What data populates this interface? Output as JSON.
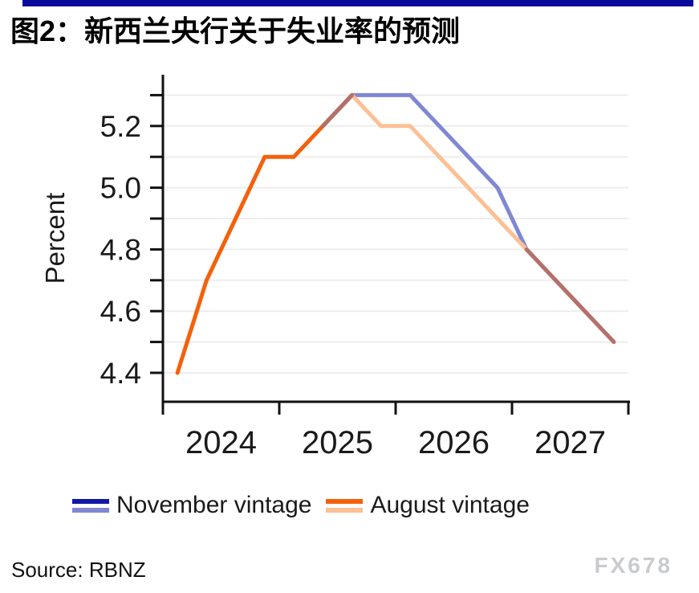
{
  "header": {
    "title": "图2：新西兰央行关于失业率的预测",
    "rule_color": "#0A0A9B"
  },
  "chart_data": {
    "type": "line",
    "frequency": "quarterly",
    "ylabel": "Percent",
    "x_year_labels": [
      "2024",
      "2025",
      "2026",
      "2027"
    ],
    "y_tick_labels": [
      "4.4",
      "4.6",
      "4.8",
      "5.0",
      "5.2"
    ],
    "grid_lines_at": [
      4.4,
      4.5,
      4.6,
      4.7,
      4.8,
      4.9,
      5.0,
      5.1,
      5.2,
      5.3
    ],
    "ylim": [
      4.31,
      5.36
    ],
    "grid": true,
    "legend_position": "bottom",
    "overlap_color": "#B4706A",
    "series": [
      {
        "name": "November vintage",
        "color_dark": "#1018A5",
        "color_light": "#8087D3",
        "dark_until": "2025Q3",
        "quarters": [
          "2025Q2",
          "2025Q3",
          "2025Q4",
          "2026Q1",
          "2026Q2",
          "2026Q3",
          "2026Q4",
          "2027Q1",
          "2027Q2",
          "2027Q3",
          "2027Q4"
        ],
        "values": [
          5.2,
          5.3,
          5.3,
          5.3,
          5.2,
          5.1,
          5.0,
          4.8,
          4.7,
          4.6,
          4.5
        ]
      },
      {
        "name": "August vintage",
        "color_dark": "#F4610A",
        "color_light": "#FBC094",
        "dark_until": "2025Q3",
        "quarters": [
          "2024Q1",
          "2024Q2",
          "2024Q3",
          "2024Q4",
          "2025Q1",
          "2025Q2",
          "2025Q3",
          "2025Q4",
          "2026Q1",
          "2026Q2",
          "2026Q3",
          "2026Q4",
          "2027Q1",
          "2027Q2",
          "2027Q3",
          "2027Q4"
        ],
        "values": [
          4.4,
          4.7,
          4.9,
          5.1,
          5.1,
          5.2,
          5.3,
          5.2,
          5.2,
          5.1,
          5.0,
          4.9,
          4.8,
          4.7,
          4.6,
          4.5
        ]
      }
    ]
  },
  "footer": {
    "source": "Source: RBNZ",
    "watermark": "FX678"
  }
}
